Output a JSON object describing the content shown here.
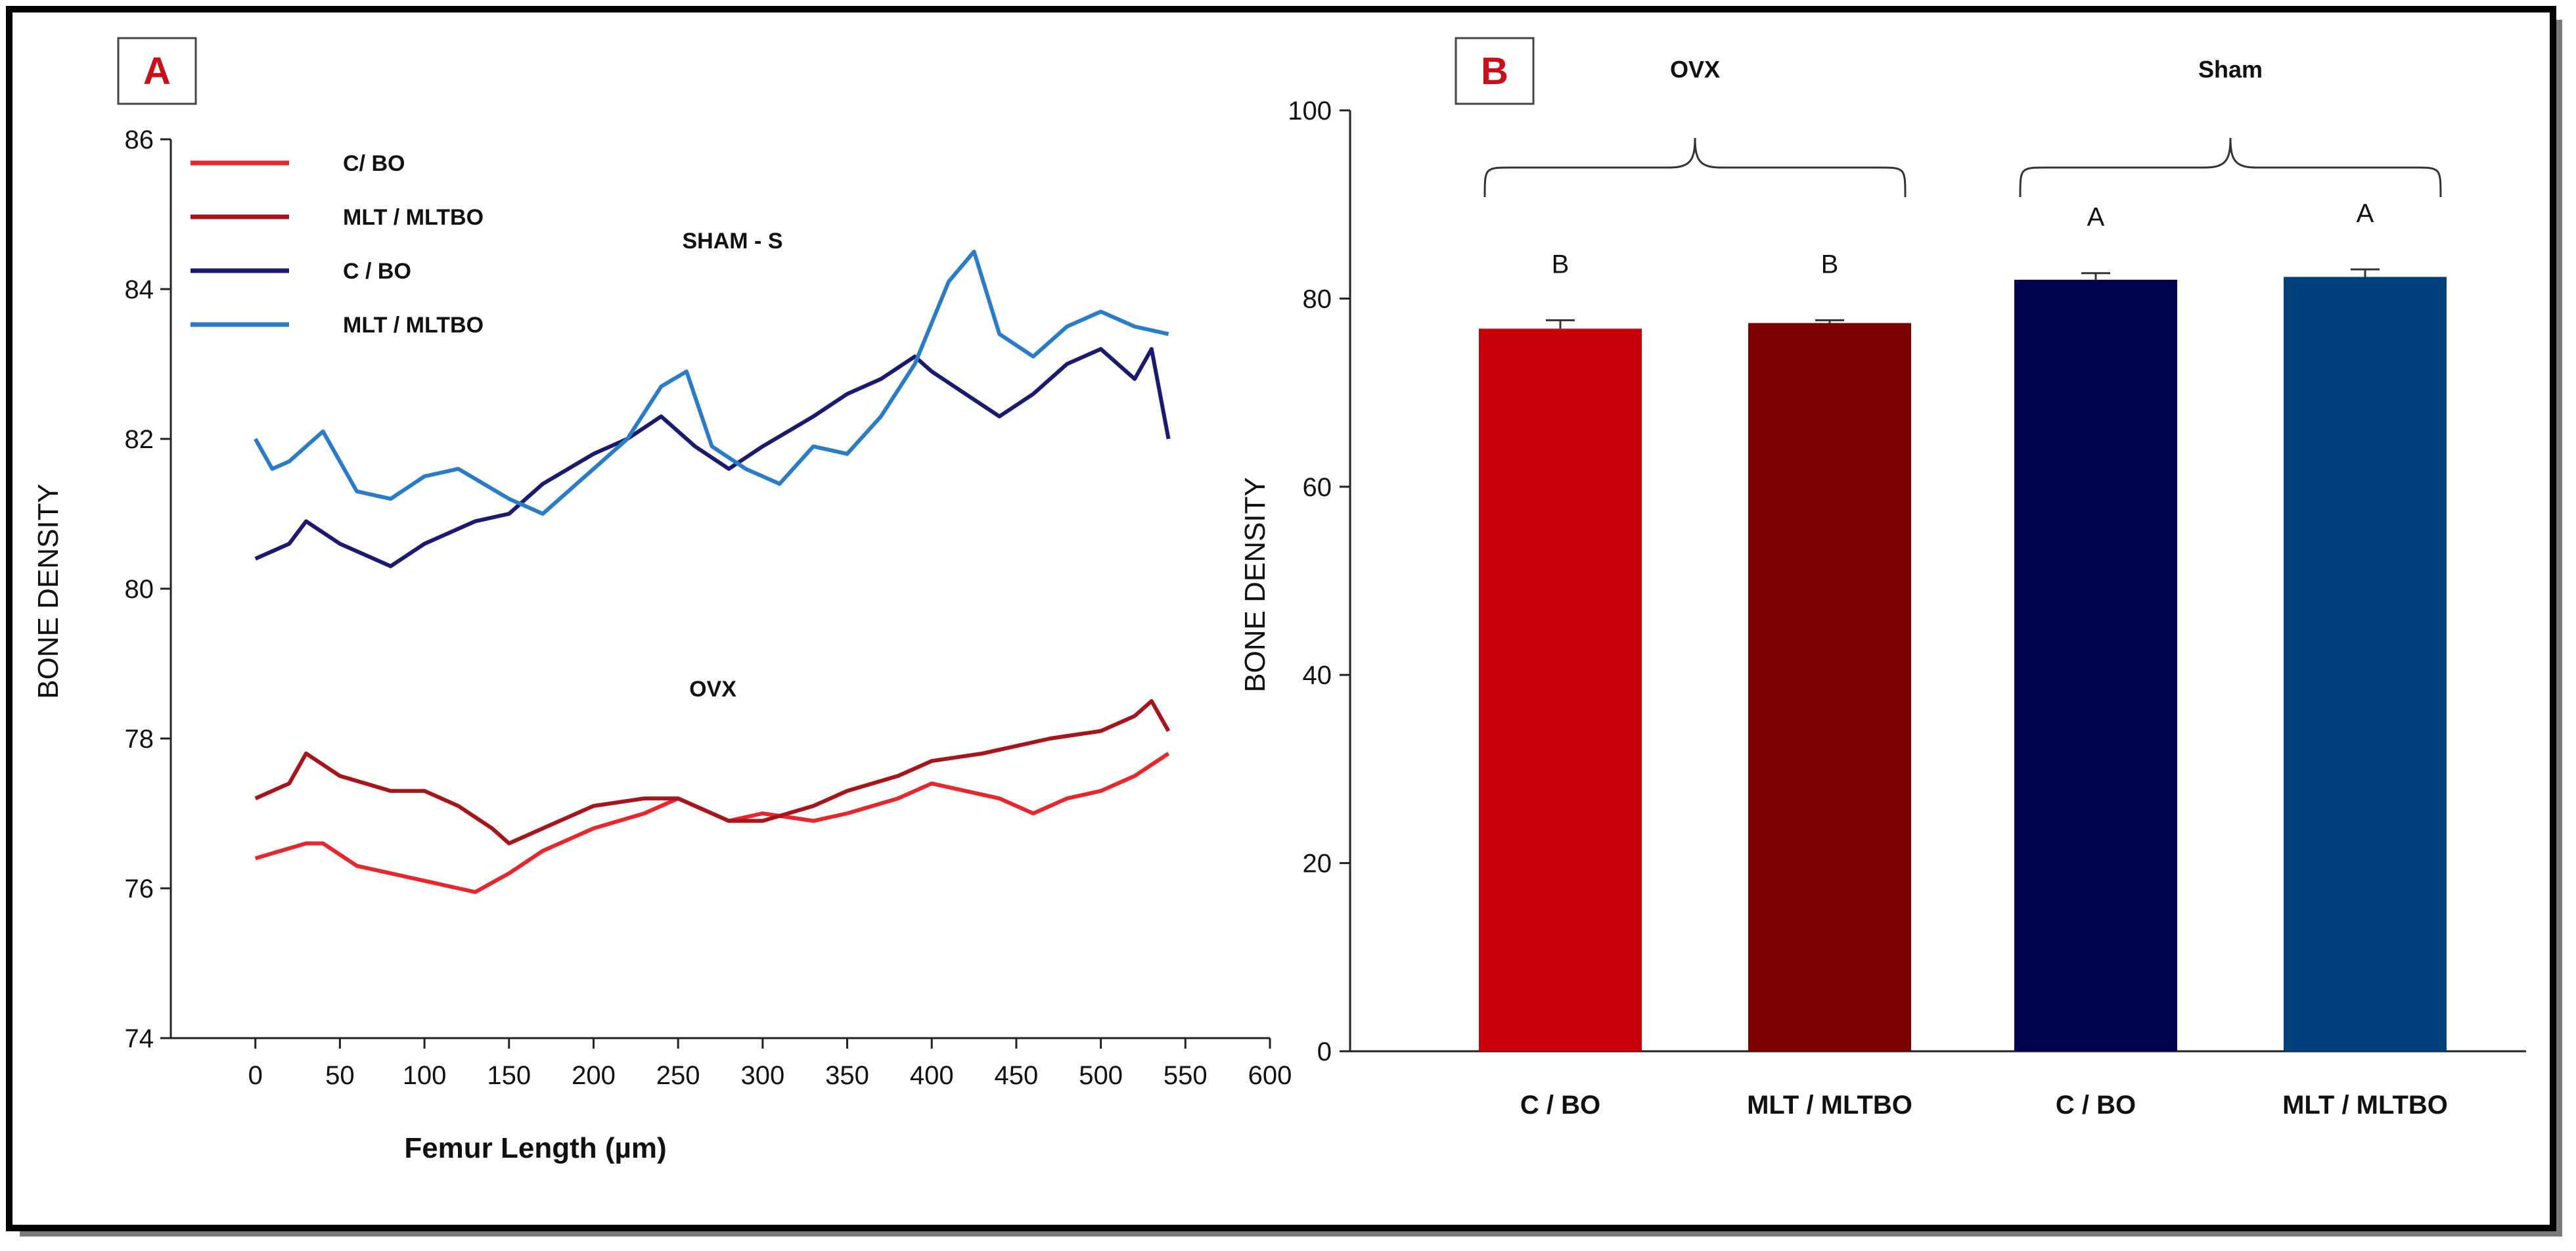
{
  "chart_data": [
    {
      "panel": "A",
      "type": "line",
      "xlabel": "Femur Length (µm)",
      "ylabel": "BONE  DENSITY",
      "xlim": [
        -50,
        600
      ],
      "ylim": [
        74,
        86
      ],
      "x_ticks": [
        0,
        50,
        100,
        150,
        200,
        250,
        300,
        350,
        400,
        450,
        500,
        550,
        600
      ],
      "y_ticks": [
        74,
        76,
        78,
        80,
        82,
        84,
        86
      ],
      "grid": false,
      "legend_position": "top-left",
      "annotations": [
        {
          "text": "SHAM - S",
          "x": 250,
          "y": 83.3
        },
        {
          "text": "OVX",
          "x": 300,
          "y": 78.5
        }
      ],
      "series": [
        {
          "name": "C/ BO",
          "group": "OVX",
          "color": "#e8262b",
          "x": [
            0,
            30,
            40,
            60,
            80,
            100,
            120,
            130,
            150,
            170,
            200,
            230,
            250,
            280,
            300,
            330,
            350,
            380,
            400,
            420,
            440,
            460,
            480,
            500,
            520,
            540
          ],
          "y": [
            76.4,
            76.6,
            76.6,
            76.3,
            76.2,
            76.1,
            76.0,
            75.95,
            76.2,
            76.5,
            76.8,
            77.0,
            77.2,
            76.9,
            77.0,
            76.9,
            77.0,
            77.2,
            77.4,
            77.3,
            77.2,
            77.0,
            77.2,
            77.3,
            77.5,
            77.8
          ]
        },
        {
          "name": "MLT / MLTBO",
          "group": "OVX",
          "color": "#a8141b",
          "x": [
            0,
            20,
            30,
            50,
            80,
            100,
            120,
            140,
            150,
            170,
            200,
            230,
            250,
            280,
            300,
            330,
            350,
            380,
            400,
            430,
            450,
            470,
            500,
            520,
            530,
            540
          ],
          "y": [
            77.2,
            77.4,
            77.8,
            77.5,
            77.3,
            77.3,
            77.1,
            76.8,
            76.6,
            76.8,
            77.1,
            77.2,
            77.2,
            76.9,
            76.9,
            77.1,
            77.3,
            77.5,
            77.7,
            77.8,
            77.9,
            78.0,
            78.1,
            78.3,
            78.5,
            78.1
          ]
        },
        {
          "name": "C / BO",
          "group": "SHAM - S",
          "color": "#1a1a6e",
          "x": [
            0,
            20,
            30,
            50,
            70,
            80,
            100,
            130,
            150,
            170,
            200,
            220,
            240,
            260,
            280,
            300,
            330,
            350,
            370,
            390,
            400,
            420,
            440,
            460,
            480,
            500,
            520,
            530,
            540
          ],
          "y": [
            80.4,
            80.6,
            80.9,
            80.6,
            80.4,
            80.3,
            80.6,
            80.9,
            81.0,
            81.4,
            81.8,
            82.0,
            82.3,
            81.9,
            81.6,
            81.9,
            82.3,
            82.6,
            82.8,
            83.1,
            82.9,
            82.6,
            82.3,
            82.6,
            83.0,
            83.2,
            82.8,
            83.2,
            82.0
          ]
        },
        {
          "name": "MLT / MLTBO",
          "group": "SHAM - S",
          "color": "#2a7cc8",
          "x": [
            0,
            10,
            20,
            40,
            60,
            80,
            100,
            120,
            150,
            170,
            200,
            220,
            240,
            255,
            270,
            290,
            310,
            330,
            350,
            370,
            390,
            410,
            425,
            440,
            460,
            480,
            500,
            520,
            540
          ],
          "y": [
            82.0,
            81.6,
            81.7,
            82.1,
            81.3,
            81.2,
            81.5,
            81.6,
            81.2,
            81.0,
            81.6,
            82.0,
            82.7,
            82.9,
            81.9,
            81.6,
            81.4,
            81.9,
            81.8,
            82.3,
            83.0,
            84.1,
            84.5,
            83.4,
            83.1,
            83.5,
            83.7,
            83.5,
            83.4
          ]
        }
      ],
      "legend": [
        {
          "label": "C/ BO",
          "color": "#e8262b"
        },
        {
          "label": "MLT / MLTBO",
          "color": "#a8141b"
        },
        {
          "label": "C / BO",
          "color": "#1a1a6e"
        },
        {
          "label": "MLT / MLTBO",
          "color": "#2a7cc8"
        }
      ]
    },
    {
      "panel": "B",
      "type": "bar",
      "ylabel": "BONE  DENSITY",
      "xlabel": "",
      "ylim": [
        0,
        100
      ],
      "y_ticks": [
        0,
        20,
        40,
        60,
        80,
        100
      ],
      "grid": false,
      "categories": [
        "C / BO",
        "MLT / MLTBO",
        "C / BO",
        "MLT / MLTBO"
      ],
      "values": [
        76.8,
        77.4,
        82.0,
        82.3
      ],
      "errors": [
        0.9,
        0.3,
        0.7,
        0.8
      ],
      "colors": [
        "#c8000b",
        "#7d0000",
        "#00004f",
        "#00407a"
      ],
      "significance": [
        "B",
        "B",
        "A",
        "A"
      ],
      "groups": [
        {
          "label": "OVX",
          "span": [
            0,
            1
          ]
        },
        {
          "label": "Sham",
          "span": [
            2,
            3
          ]
        }
      ]
    }
  ]
}
